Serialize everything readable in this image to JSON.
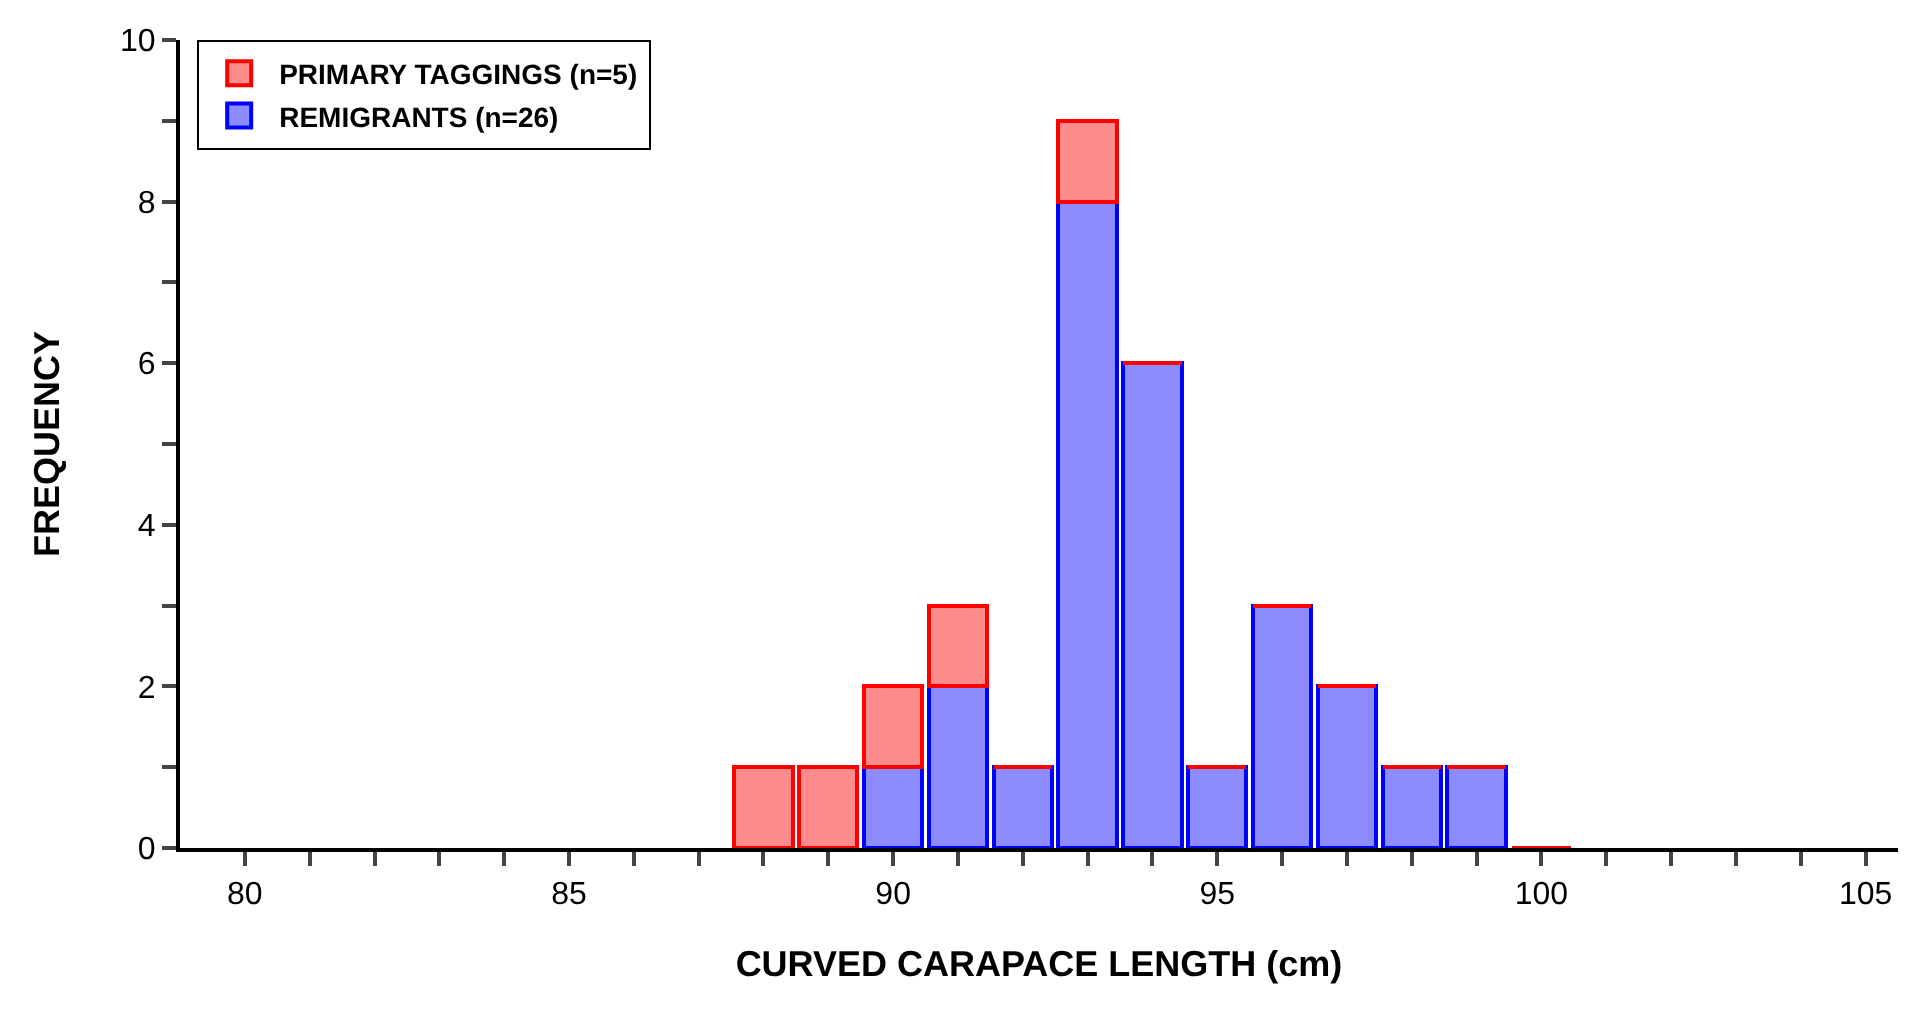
{
  "chart_data": {
    "type": "bar",
    "stacked": true,
    "xlabel": "CURVED CARAPACE LENGTH (cm)",
    "ylabel": "FREQUENCY",
    "x": [
      88,
      89,
      90,
      91,
      92,
      93,
      94,
      95,
      96,
      97,
      98,
      99,
      100
    ],
    "series": [
      {
        "name": "REMIGRANTS (n=26)",
        "color": "#0000ff",
        "values": [
          0,
          0,
          1,
          2,
          1,
          8,
          6,
          1,
          3,
          2,
          1,
          1,
          0
        ]
      },
      {
        "name": "PRIMARY TAGGINGS (n=5)",
        "color": "#ff0000",
        "values": [
          1,
          1,
          1,
          1,
          0,
          1,
          0,
          0,
          0,
          0,
          0,
          0,
          0
        ]
      }
    ],
    "xlim": [
      79,
      105.5
    ],
    "xticks": [
      80,
      {
        "value": 81,
        "label": null
      },
      {
        "value": 82,
        "label": null
      },
      {
        "value": 83,
        "label": null
      },
      {
        "value": 84,
        "label": null
      },
      85,
      {
        "value": 86,
        "label": null
      },
      {
        "value": 87,
        "label": null
      },
      {
        "value": 88,
        "label": null
      },
      {
        "value": 89,
        "label": null
      },
      90,
      {
        "value": 91,
        "label": null
      },
      {
        "value": 92,
        "label": null
      },
      {
        "value": 93,
        "label": null
      },
      {
        "value": 94,
        "label": null
      },
      95,
      {
        "value": 96,
        "label": null
      },
      {
        "value": 97,
        "label": null
      },
      {
        "value": 98,
        "label": null
      },
      {
        "value": 99,
        "label": null
      },
      100,
      {
        "value": 101,
        "label": null
      },
      {
        "value": 102,
        "label": null
      },
      {
        "value": 103,
        "label": null
      },
      {
        "value": 104,
        "label": null
      },
      105
    ],
    "ylim": [
      0,
      10
    ],
    "yticks": [
      0,
      {
        "value": 1,
        "label": null
      },
      2,
      {
        "value": 3,
        "label": null
      },
      4,
      {
        "value": 5,
        "label": null
      },
      6,
      {
        "value": 7,
        "label": null
      },
      8,
      {
        "value": 9,
        "label": null
      },
      10
    ],
    "legend": "top left"
  }
}
